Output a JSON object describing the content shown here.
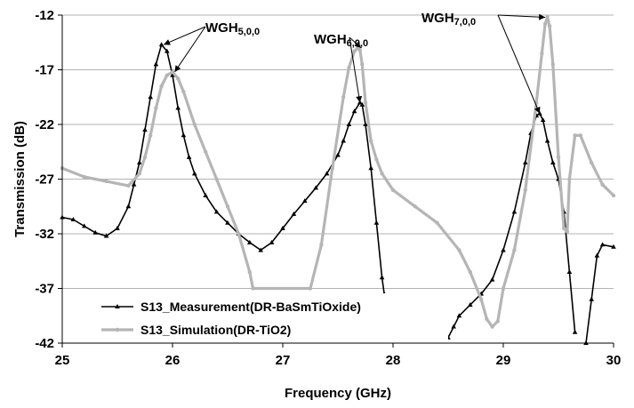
{
  "chart_data": {
    "type": "line",
    "xlabel": "Frequency (GHz)",
    "ylabel": "Transmission (dB)",
    "xlim": [
      25,
      30
    ],
    "ylim": [
      -42,
      -12
    ],
    "x_ticks": [
      "25",
      "26",
      "27",
      "28",
      "29",
      "30"
    ],
    "y_ticks": [
      "-12",
      "-17",
      "-22",
      "-27",
      "-32",
      "-37",
      "-42"
    ],
    "grid": "horizontal",
    "legend_position": "bottom-left",
    "colors": {
      "measurement": "#000000",
      "simulation": "#b5b5b5"
    },
    "series": [
      {
        "name": "S13_Measurement(DR-BaSmTiOxide)",
        "marker": "triangle",
        "x": [
          25.0,
          25.1,
          25.2,
          25.3,
          25.4,
          25.5,
          25.6,
          25.65,
          25.7,
          25.75,
          25.8,
          25.85,
          25.9,
          25.95,
          26.0,
          26.05,
          26.1,
          26.15,
          26.2,
          26.3,
          26.4,
          26.5,
          26.6,
          26.7,
          26.8,
          26.9,
          27.0,
          27.1,
          27.2,
          27.3,
          27.4,
          27.5,
          27.55,
          27.6,
          27.65,
          27.7,
          27.72,
          27.75,
          27.8,
          27.85,
          27.9,
          27.92,
          28.0,
          28.4,
          28.5,
          28.55,
          28.6,
          28.7,
          28.8,
          28.9,
          29.0,
          29.1,
          29.2,
          29.25,
          29.3,
          29.33,
          29.36,
          29.4,
          29.45,
          29.5,
          29.55,
          29.6,
          29.65,
          29.7,
          29.72,
          29.75,
          29.8,
          29.85,
          29.9,
          30.0
        ],
        "y": [
          -30.5,
          -30.7,
          -31.3,
          -31.9,
          -32.2,
          -31.5,
          -29.5,
          -27.5,
          -25.5,
          -22.5,
          -19.5,
          -16.5,
          -14.7,
          -15.3,
          -17.5,
          -20.5,
          -23.0,
          -25.0,
          -26.5,
          -28.5,
          -30.0,
          -31.0,
          -32.0,
          -32.8,
          -33.5,
          -32.8,
          -31.5,
          -30.2,
          -29.0,
          -27.8,
          -26.5,
          -24.8,
          -23.5,
          -22.0,
          -20.8,
          -20.0,
          -20.2,
          -22.0,
          -26.0,
          -31.0,
          -36.0,
          -37.5,
          null,
          null,
          -41.5,
          -40.5,
          -39.5,
          -38.5,
          -37.5,
          -36.2,
          -33.5,
          -30.0,
          -25.5,
          -22.8,
          -21.2,
          -21.0,
          -21.6,
          -23.5,
          -25.5,
          -27.0,
          -30.0,
          -35.5,
          -41.0,
          null,
          null,
          -42.0,
          -38.0,
          -34.0,
          -33.0,
          -33.2
        ]
      },
      {
        "name": "S13_Simulation(DR-TiO2)",
        "marker": "circle",
        "x": [
          25.0,
          25.2,
          25.4,
          25.6,
          25.7,
          25.75,
          25.8,
          25.85,
          25.9,
          25.95,
          26.0,
          26.05,
          26.1,
          26.2,
          26.3,
          26.4,
          26.5,
          26.6,
          26.7,
          26.73,
          27.25,
          27.35,
          27.45,
          27.55,
          27.6,
          27.65,
          27.68,
          27.7,
          27.72,
          27.75,
          27.8,
          27.85,
          27.9,
          28.0,
          28.2,
          28.4,
          28.6,
          28.7,
          28.8,
          28.85,
          28.9,
          28.95,
          29.0,
          29.1,
          29.2,
          29.3,
          29.35,
          29.38,
          29.4,
          29.42,
          29.45,
          29.5,
          29.55,
          29.58,
          29.6,
          29.65,
          29.7,
          29.8,
          29.9,
          30.0
        ],
        "y": [
          -26.0,
          -26.8,
          -27.2,
          -27.6,
          -26.5,
          -25.0,
          -23.0,
          -20.5,
          -18.5,
          -17.5,
          -17.2,
          -17.8,
          -19.0,
          -22.0,
          -24.5,
          -27.0,
          -29.5,
          -32.0,
          -35.5,
          -37.0,
          -37.0,
          -33.0,
          -26.0,
          -19.5,
          -16.8,
          -15.3,
          -15.0,
          -15.2,
          -16.5,
          -20.0,
          -23.5,
          -25.2,
          -26.5,
          -28.0,
          -29.5,
          -31.0,
          -33.5,
          -35.5,
          -38.0,
          -39.8,
          -40.5,
          -40.0,
          -37.0,
          -33.5,
          -28.0,
          -20.0,
          -15.5,
          -12.8,
          -12.2,
          -13.0,
          -16.5,
          -25.0,
          -31.5,
          -31.8,
          -27.0,
          -23.0,
          -23.0,
          -25.5,
          -27.5,
          -28.5
        ]
      }
    ],
    "annotations": [
      {
        "main": "WGH",
        "sub": "5,0,0"
      },
      {
        "main": "WGH",
        "sub": "6,0,0"
      },
      {
        "main": "WGH",
        "sub": "7,0,0"
      }
    ]
  }
}
